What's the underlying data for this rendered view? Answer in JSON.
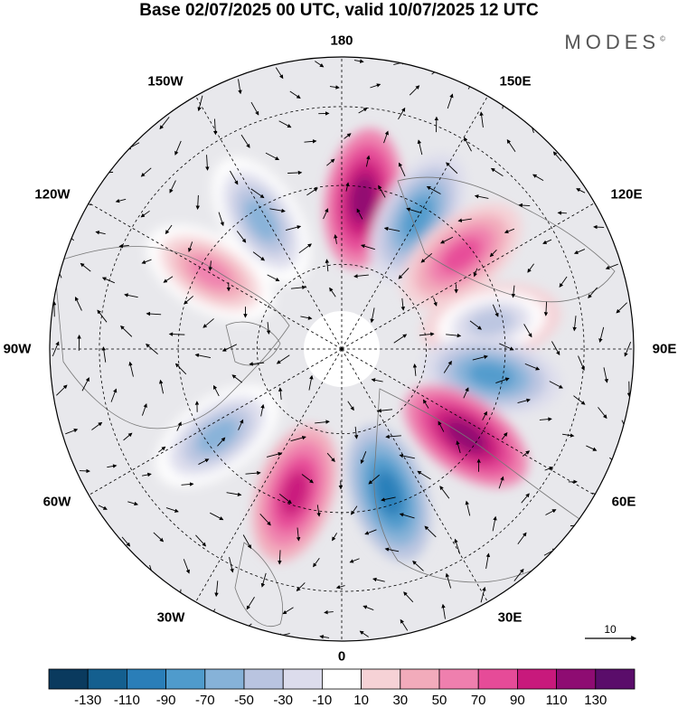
{
  "title": "Base 02/07/2025 00 UTC, valid 10/07/2025 12 UTC",
  "brand": "MODES",
  "brand_mark": "©",
  "longitude_labels": {
    "top": "180",
    "bottom": "0",
    "left": "90W",
    "right": "90E",
    "w150": "150W",
    "e150": "150E",
    "w120": "120W",
    "e120": "120E",
    "w60": "60W",
    "e60": "60E",
    "w30": "30W",
    "e30": "30E"
  },
  "reference_vector": {
    "label": "10"
  },
  "colorbar": {
    "labels": [
      "-130",
      "-110",
      "-90",
      "-70",
      "-50",
      "-30",
      "-10",
      "10",
      "30",
      "50",
      "70",
      "90",
      "110",
      "130"
    ],
    "colors": [
      "#0a3a5e",
      "#145f8f",
      "#2a7eb8",
      "#4f9bcc",
      "#86b2d8",
      "#b9c4e0",
      "#dcdcec",
      "#ffffff",
      "#f6d2d6",
      "#f2abbb",
      "#ef7fae",
      "#e64b98",
      "#c8197c",
      "#8e0c72",
      "#5a0d6a"
    ]
  },
  "anomaly_centers": [
    {
      "lon_deg": 172,
      "sign": "positive",
      "value": 110
    },
    {
      "lon_deg": -148,
      "sign": "negative",
      "value": -70
    },
    {
      "lon_deg": 150,
      "sign": "negative",
      "value": -90
    },
    {
      "lon_deg": 128,
      "sign": "positive",
      "value": 70
    },
    {
      "lon_deg": 100,
      "sign": "negative",
      "value": -50
    },
    {
      "lon_deg": 80,
      "sign": "negative",
      "value": -90
    },
    {
      "lon_deg": 55,
      "sign": "positive",
      "value": 110
    },
    {
      "lon_deg": 18,
      "sign": "negative",
      "value": -110
    },
    {
      "lon_deg": -18,
      "sign": "positive",
      "value": 90
    },
    {
      "lon_deg": -55,
      "sign": "negative",
      "value": -70
    },
    {
      "lon_deg": -120,
      "sign": "positive",
      "value": 50
    }
  ]
}
